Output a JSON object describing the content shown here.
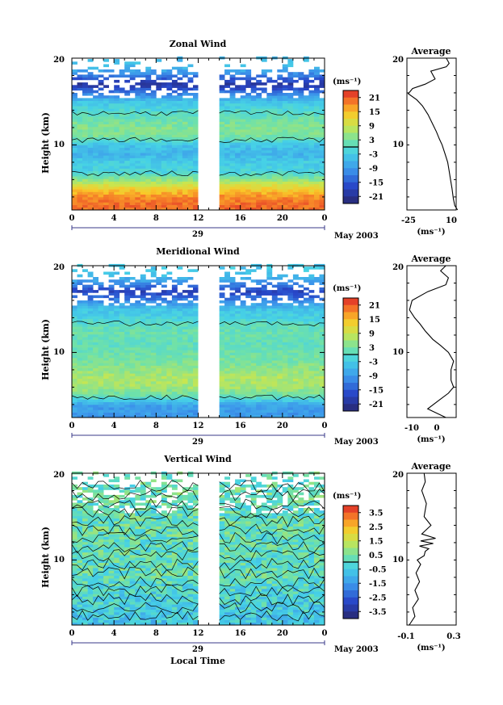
{
  "panels": [
    {
      "id": "zonal",
      "title": "Zonal Wind",
      "ylabel": "Height (km)",
      "yticks": [
        "20",
        "10"
      ],
      "xticks": [
        "0",
        "4",
        "8",
        "12",
        "16",
        "20",
        "0"
      ],
      "day_label": "29",
      "date_label": "May 2003",
      "unit_label": "(ms⁻¹)",
      "colorbar_ticks": [
        "21",
        "15",
        "9",
        "3",
        "-3",
        "-9",
        "-15",
        "-21"
      ],
      "profile": {
        "title": "Average",
        "yticks": [
          "20",
          "10"
        ],
        "xticks": [
          "-25",
          "10"
        ],
        "xlabel": "(ms⁻¹)"
      }
    },
    {
      "id": "meridional",
      "title": "Meridional Wind",
      "ylabel": "Height (km)",
      "yticks": [
        "20",
        "10"
      ],
      "xticks": [
        "0",
        "4",
        "8",
        "12",
        "16",
        "20",
        "0"
      ],
      "day_label": "29",
      "date_label": "May 2003",
      "unit_label": "(ms⁻¹)",
      "colorbar_ticks": [
        "21",
        "15",
        "9",
        "3",
        "-3",
        "-9",
        "-15",
        "-21"
      ],
      "profile": {
        "title": "Average",
        "yticks": [
          "20",
          "10"
        ],
        "xticks": [
          "-10",
          "0"
        ],
        "xlabel": "(ms⁻¹)"
      }
    },
    {
      "id": "vertical",
      "title": "Vertical Wind",
      "ylabel": "Height (km)",
      "yticks": [
        "20",
        "10"
      ],
      "xticks": [
        "0",
        "4",
        "8",
        "12",
        "16",
        "20",
        "0"
      ],
      "day_label": "29",
      "date_label": "May 2003",
      "unit_label": "(ms⁻¹)",
      "colorbar_ticks": [
        "3.5",
        "2.5",
        "1.5",
        "0.5",
        "-0.5",
        "-1.5",
        "-2.5",
        "-3.5"
      ],
      "profile": {
        "title": "Average",
        "yticks": [
          "20",
          "10"
        ],
        "xticks": [
          "-0.1",
          "0.3"
        ],
        "xlabel": "(ms⁻¹)"
      }
    }
  ],
  "bottom_xlabel": "Local Time",
  "chart_data": [
    {
      "type": "heatmap",
      "title": "Zonal Wind",
      "ylabel": "Height (km)",
      "xlabel": "Local Time",
      "x_range_hours": [
        0,
        24
      ],
      "ylim_km": [
        2.5,
        20
      ],
      "data_gap_hours": [
        12,
        14
      ],
      "colorbar": {
        "unit": "(ms⁻¹)",
        "range": [
          -24,
          24
        ],
        "ticks": [
          21,
          15,
          9,
          3,
          -3,
          -9,
          -15,
          -21
        ],
        "contour": 0
      },
      "height_bands_km": [
        3,
        4,
        5,
        6,
        7,
        8,
        9,
        10,
        11,
        12,
        13,
        14,
        15,
        16,
        17,
        18,
        19
      ],
      "band_mean_values": [
        20,
        18,
        13,
        5,
        -2,
        -3,
        -6,
        -4,
        3,
        4,
        2,
        -1,
        -4,
        -12,
        -20,
        -12,
        -5
      ]
    },
    {
      "type": "line",
      "title": "Average",
      "xlim": [
        -25,
        10
      ],
      "ylim": [
        2.5,
        20
      ],
      "xlabel": "(ms⁻¹)",
      "series": [
        {
          "x": [
            11,
            9,
            8,
            7,
            6,
            5,
            4,
            2,
            0,
            -2,
            -4,
            -7,
            -10,
            -14,
            -18,
            -24,
            -21,
            -12,
            -5,
            -8,
            3,
            5,
            3
          ],
          "y": [
            2.5,
            3,
            3.8,
            5,
            6,
            7,
            8,
            9,
            10,
            10.7,
            11.5,
            12.5,
            13.5,
            14.5,
            15.2,
            15.9,
            16.5,
            17,
            17.6,
            18.5,
            19,
            19.4,
            20
          ]
        }
      ]
    },
    {
      "type": "heatmap",
      "title": "Meridional Wind",
      "ylabel": "Height (km)",
      "xlabel": "Local Time",
      "x_range_hours": [
        0,
        24
      ],
      "ylim_km": [
        2.5,
        20
      ],
      "data_gap_hours": [
        12,
        14
      ],
      "colorbar": {
        "unit": "(ms⁻¹)",
        "range": [
          -24,
          24
        ],
        "ticks": [
          21,
          15,
          9,
          3,
          -3,
          -9,
          -15,
          -21
        ],
        "contour": 0
      },
      "height_bands_km": [
        3,
        4,
        5,
        6,
        7,
        8,
        9,
        10,
        11,
        12,
        13,
        14,
        15,
        16,
        17,
        18,
        19
      ],
      "band_mean_values": [
        -9,
        -8,
        2,
        6,
        7,
        5,
        3,
        2,
        1,
        2,
        1,
        -2,
        -4,
        -11,
        -18,
        -10,
        -4
      ]
    },
    {
      "type": "line",
      "title": "Average",
      "xlim": [
        -13,
        6
      ],
      "ylim": [
        2.5,
        20
      ],
      "xlabel": "(ms⁻¹)",
      "series": [
        {
          "x": [
            2,
            -5,
            -1,
            3,
            5,
            4,
            4,
            5,
            3,
            0,
            -3,
            -6,
            -8,
            -10,
            -12,
            -11,
            -5,
            2,
            3,
            0,
            2
          ],
          "y": [
            2.5,
            3.5,
            4.4,
            5.3,
            6,
            6.8,
            8,
            9,
            10,
            10.8,
            11.5,
            12.5,
            13.3,
            14,
            14.9,
            16,
            17,
            17.8,
            18.6,
            19.4,
            20
          ]
        }
      ]
    },
    {
      "type": "heatmap",
      "title": "Vertical Wind",
      "ylabel": "Height (km)",
      "xlabel": "Local Time",
      "x_range_hours": [
        0,
        24
      ],
      "ylim_km": [
        2.5,
        20
      ],
      "data_gap_hours": [
        12,
        14
      ],
      "colorbar": {
        "unit": "(ms⁻¹)",
        "range": [
          -4,
          4
        ],
        "ticks": [
          3.5,
          2.5,
          1.5,
          0.5,
          -0.5,
          -1.5,
          -2.5,
          -3.5
        ],
        "contour": 0
      },
      "height_bands_km": [
        3,
        4,
        5,
        6,
        7,
        8,
        9,
        10,
        11,
        12,
        13,
        14,
        15,
        16,
        17,
        18,
        19
      ],
      "band_mean_values": [
        -0.6,
        -0.5,
        -0.3,
        -0.2,
        -0.1,
        0.1,
        0.2,
        0.1,
        0.2,
        0.1,
        0.2,
        0.3,
        0.2,
        0.1,
        0.2,
        0.3,
        0.2
      ]
    },
    {
      "type": "line",
      "title": "Average",
      "xlim": [
        -0.13,
        0.3
      ],
      "ylim": [
        2.5,
        20
      ],
      "xlabel": "(ms⁻¹)",
      "series": [
        {
          "x": [
            -0.11,
            -0.06,
            -0.08,
            -0.03,
            -0.06,
            -0.02,
            -0.05,
            -0.01,
            -0.04,
            0.02,
            0.03,
            0.06,
            -0.02,
            0.1,
            -0.01,
            0.12,
            0.0,
            0.08,
            0.02,
            0.04,
            0.0,
            0.03,
            0.02
          ],
          "y": [
            2.5,
            3.5,
            4.5,
            5.5,
            6.5,
            7.5,
            8.5,
            9.5,
            10,
            10.5,
            11,
            11.3,
            11.6,
            11.9,
            12.2,
            12.5,
            13,
            14,
            15,
            16.5,
            18,
            19,
            20
          ]
        }
      ]
    }
  ]
}
